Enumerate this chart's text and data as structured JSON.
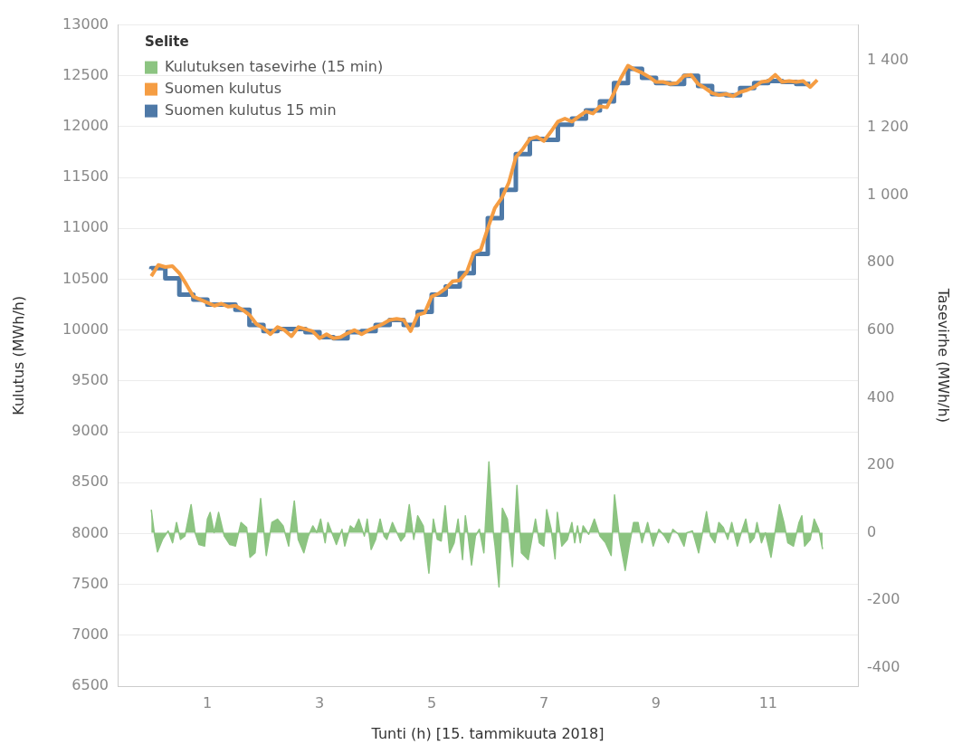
{
  "chart_data": {
    "type": "line",
    "xlabel": "Tunti (h) [15. tammikuuta 2018]",
    "ylabel": "Kulutus (MWh/h)",
    "y2label": "Tasevirhe (MWh/h)",
    "legend_title": "Selite",
    "xlim": [
      -0.6,
      12.6
    ],
    "xticks": [
      1,
      3,
      5,
      7,
      9,
      11
    ],
    "ylim": [
      6500,
      13000
    ],
    "yticks": [
      6500,
      7000,
      7500,
      8000,
      8500,
      9000,
      9500,
      10000,
      10500,
      11000,
      11500,
      12000,
      12500,
      13000
    ],
    "y2lim": [
      -455,
      1505
    ],
    "y2ticks": [
      {
        "value": -400,
        "label": "-400"
      },
      {
        "value": -200,
        "label": "-200"
      },
      0,
      200,
      400,
      600,
      800,
      {
        "value": 1000,
        "label": "1 000"
      },
      {
        "value": 1200,
        "label": "1 200"
      },
      {
        "value": 1400,
        "label": "1 400"
      }
    ],
    "grid": "y",
    "legend": "top left",
    "series": [
      {
        "name": "Kulutuksen tasevirhe (15 min)",
        "type": "area",
        "axis": "y2",
        "color": "#8cc481",
        "x": [
          0,
          0.06,
          0.11,
          0.2,
          0.3,
          0.38,
          0.45,
          0.52,
          0.6,
          0.71,
          0.78,
          0.85,
          0.95,
          1.0,
          1.05,
          1.12,
          1.2,
          1.3,
          1.4,
          1.5,
          1.6,
          1.7,
          1.76,
          1.85,
          1.95,
          2.05,
          2.15,
          2.25,
          2.35,
          2.45,
          2.5,
          2.55,
          2.62,
          2.72,
          2.8,
          2.88,
          2.95,
          3.02,
          3.1,
          3.15,
          3.22,
          3.3,
          3.4,
          3.45,
          3.55,
          3.62,
          3.7,
          3.8,
          3.85,
          3.92,
          4.0,
          4.08,
          4.15,
          4.2,
          4.3,
          4.38,
          4.45,
          4.52,
          4.6,
          4.68,
          4.75,
          4.85,
          4.95,
          5.03,
          5.1,
          5.17,
          5.24,
          5.32,
          5.4,
          5.47,
          5.55,
          5.6,
          5.65,
          5.71,
          5.78,
          5.85,
          5.93,
          6.02,
          6.1,
          6.13,
          6.2,
          6.26,
          6.35,
          6.44,
          6.52,
          6.6,
          6.72,
          6.85,
          6.92,
          7.0,
          7.05,
          7.13,
          7.2,
          7.24,
          7.32,
          7.42,
          7.5,
          7.55,
          7.6,
          7.65,
          7.7,
          7.8,
          7.9,
          8.0,
          8.1,
          8.2,
          8.26,
          8.35,
          8.45,
          8.52,
          8.6,
          8.68,
          8.75,
          8.85,
          8.95,
          9.05,
          9.15,
          9.22,
          9.3,
          9.4,
          9.5,
          9.55,
          9.65,
          9.76,
          9.9,
          9.97,
          10.05,
          10.12,
          10.2,
          10.28,
          10.35,
          10.45,
          10.52,
          10.6,
          10.68,
          10.75,
          10.8,
          10.88,
          10.95,
          11.05,
          11.2,
          11.28,
          11.35,
          11.45,
          11.55,
          11.6,
          11.65,
          11.75,
          11.82,
          11.9,
          11.97
        ],
        "values": [
          68,
          -10,
          -57,
          -20,
          5,
          -30,
          30,
          -20,
          -10,
          83,
          0,
          -35,
          -40,
          40,
          60,
          0,
          60,
          -10,
          -35,
          -40,
          30,
          15,
          -73,
          -60,
          101,
          -68,
          30,
          40,
          20,
          -40,
          30,
          94,
          -20,
          -60,
          -10,
          20,
          0,
          40,
          -30,
          30,
          0,
          -35,
          10,
          -40,
          20,
          10,
          40,
          -10,
          40,
          -50,
          -20,
          40,
          -10,
          -20,
          30,
          0,
          -25,
          -10,
          83,
          -20,
          50,
          20,
          -120,
          40,
          -20,
          -25,
          80,
          -60,
          -30,
          40,
          -80,
          50,
          -10,
          -96,
          -10,
          10,
          -60,
          210,
          0,
          -40,
          -161,
          72,
          40,
          -101,
          140,
          -60,
          -80,
          40,
          -30,
          -40,
          68,
          10,
          -78,
          60,
          -40,
          -20,
          30,
          -30,
          20,
          -30,
          20,
          -5,
          40,
          -10,
          -30,
          -68,
          112,
          -20,
          -112,
          -40,
          30,
          30,
          -30,
          30,
          -40,
          10,
          -10,
          -30,
          10,
          -5,
          -40,
          0,
          5,
          -60,
          62,
          -10,
          -30,
          30,
          15,
          -20,
          30,
          -40,
          0,
          40,
          -30,
          -15,
          30,
          -30,
          0,
          -73,
          83,
          30,
          -30,
          -40,
          30,
          50,
          -40,
          -20,
          40,
          10,
          -49
        ]
      },
      {
        "name": "Suomen kulutus",
        "type": "line",
        "color": "#f59d43",
        "x": [
          0,
          0.125,
          0.25,
          0.375,
          0.5,
          0.625,
          0.75,
          0.875,
          1,
          1.125,
          1.25,
          1.375,
          1.5,
          1.625,
          1.75,
          1.875,
          2,
          2.125,
          2.25,
          2.375,
          2.5,
          2.625,
          2.75,
          2.875,
          3,
          3.125,
          3.25,
          3.375,
          3.5,
          3.625,
          3.75,
          3.875,
          4,
          4.125,
          4.25,
          4.375,
          4.5,
          4.625,
          4.75,
          4.875,
          5,
          5.125,
          5.25,
          5.375,
          5.5,
          5.625,
          5.75,
          5.875,
          6,
          6.125,
          6.25,
          6.375,
          6.5,
          6.625,
          6.75,
          6.875,
          7,
          7.125,
          7.25,
          7.375,
          7.5,
          7.625,
          7.75,
          7.875,
          8,
          8.125,
          8.25,
          8.375,
          8.5,
          8.625,
          8.75,
          8.875,
          9,
          9.125,
          9.25,
          9.375,
          9.5,
          9.625,
          9.75,
          9.875,
          10,
          10.125,
          10.25,
          10.375,
          10.5,
          10.625,
          10.75,
          10.875,
          11,
          11.125,
          11.25,
          11.375,
          11.5,
          11.625,
          11.75,
          11.875
        ],
        "values": [
          10530,
          10640,
          10620,
          10630,
          10560,
          10450,
          10330,
          10300,
          10270,
          10240,
          10260,
          10230,
          10240,
          10200,
          10150,
          10060,
          10020,
          9960,
          10030,
          10000,
          9940,
          10030,
          10010,
          9990,
          9920,
          9960,
          9920,
          9930,
          9970,
          10000,
          9960,
          10000,
          10030,
          10060,
          10100,
          10110,
          10100,
          9990,
          10150,
          10170,
          10330,
          10360,
          10410,
          10480,
          10490,
          10570,
          10760,
          10790,
          11000,
          11200,
          11300,
          11450,
          11700,
          11780,
          11880,
          11900,
          11860,
          11950,
          12050,
          12080,
          12050,
          12100,
          12150,
          12130,
          12200,
          12190,
          12330,
          12480,
          12600,
          12560,
          12530,
          12490,
          12440,
          12440,
          12420,
          12430,
          12500,
          12510,
          12420,
          12380,
          12330,
          12310,
          12320,
          12300,
          12340,
          12360,
          12390,
          12440,
          12450,
          12510,
          12440,
          12450,
          12440,
          12450,
          12390,
          12460
        ]
      },
      {
        "name": "Suomen kulutus 15 min",
        "type": "step",
        "color": "#4e79a7",
        "x": [
          0,
          0.25,
          0.5,
          0.75,
          1,
          1.25,
          1.5,
          1.75,
          2,
          2.25,
          2.5,
          2.75,
          3,
          3.25,
          3.5,
          3.75,
          4,
          4.25,
          4.5,
          4.75,
          5,
          5.25,
          5.5,
          5.75,
          6,
          6.25,
          6.5,
          6.75,
          7,
          7.25,
          7.5,
          7.75,
          8,
          8.25,
          8.5,
          8.75,
          9,
          9.25,
          9.5,
          9.75,
          10,
          10.25,
          10.5,
          10.75,
          11,
          11.25,
          11.5,
          11.75
        ],
        "values": [
          10600,
          10610,
          10510,
          10350,
          10300,
          10250,
          10250,
          10200,
          10050,
          9990,
          10010,
          10010,
          9980,
          9930,
          9920,
          9980,
          9990,
          10050,
          10100,
          10050,
          10180,
          10350,
          10430,
          10560,
          10750,
          11100,
          11380,
          11730,
          11880,
          11870,
          12020,
          12080,
          12160,
          12250,
          12430,
          12570,
          12480,
          12430,
          12420,
          12500,
          12400,
          12320,
          12310,
          12380,
          12430,
          12450,
          12440,
          12420
        ]
      }
    ]
  }
}
